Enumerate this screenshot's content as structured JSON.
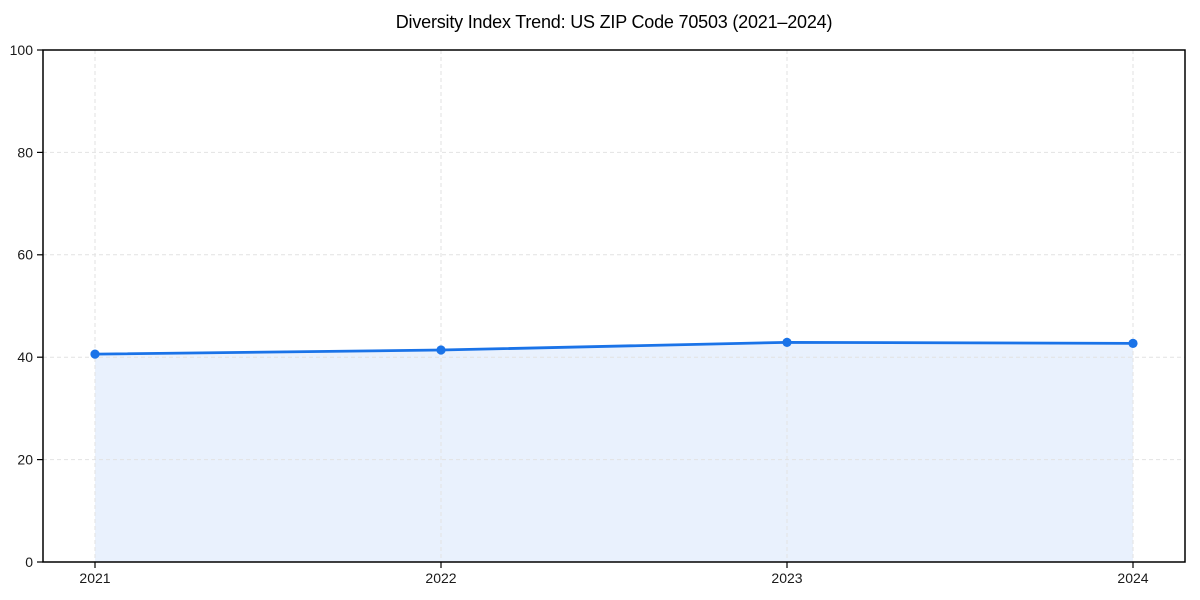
{
  "chart_data": {
    "type": "line",
    "title": "Diversity Index Trend: US ZIP Code 70503 (2021–2024)",
    "categories": [
      "2021",
      "2022",
      "2023",
      "2024"
    ],
    "series": [
      {
        "name": "Diversity Index",
        "values": [
          40.6,
          41.4,
          42.9,
          42.7
        ]
      }
    ],
    "xlabel": "",
    "ylabel": "",
    "ylim": [
      0,
      100
    ],
    "yticks": [
      0,
      20,
      40,
      60,
      80,
      100
    ],
    "grid": "dashed-both-axes",
    "legend": "none",
    "area_fill": true,
    "markers": "circle",
    "colors": {
      "line": "#1a73e8",
      "marker": "#1a73e8",
      "area_fill": "#e9f1fd",
      "gridline": "#e2e2e2",
      "axis": "#000000",
      "tick_label": "#1a1a1a",
      "title": "#000000",
      "background": "#ffffff"
    }
  }
}
